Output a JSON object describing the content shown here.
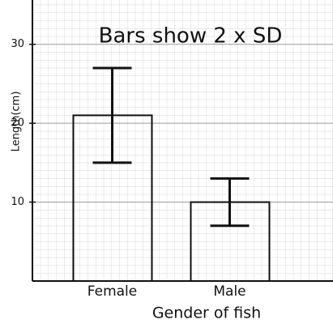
{
  "chart_data": {
    "type": "bar",
    "title": "Bars show 2 x SD",
    "ylabel": "Length(cm)",
    "xlabel": "Gender of fish",
    "categories": [
      "Female",
      "Male"
    ],
    "values": [
      21,
      10
    ],
    "errors": [
      6,
      3
    ],
    "ylim": [
      0,
      35
    ],
    "yticks": [
      10,
      20,
      30
    ],
    "grid": true,
    "color": "#111111"
  }
}
